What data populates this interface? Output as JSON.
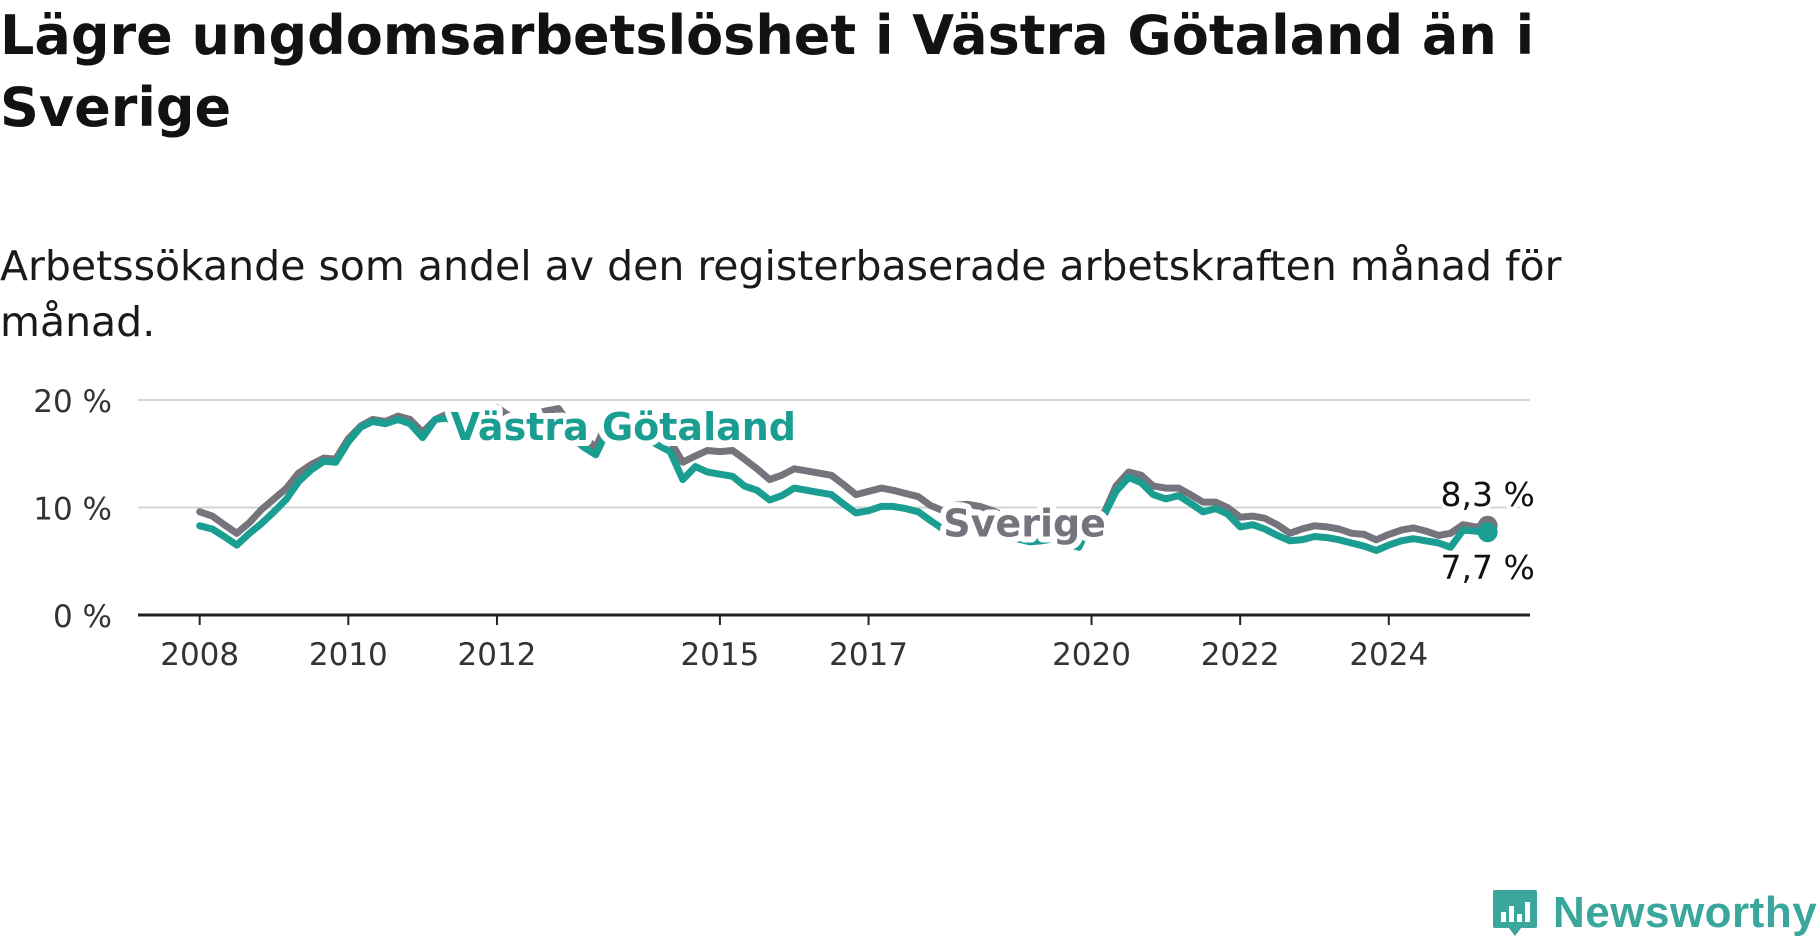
{
  "title": "Lägre ungdomsarbetslöshet i Västra Götaland än i Sverige",
  "subtitle": "Arbetssökande som andel av den registerbaserade arbetskraften månad för månad.",
  "brand": {
    "name": "Newsworthy",
    "color": "#3aa69c"
  },
  "chart_data": {
    "type": "line",
    "title": "Lägre ungdomsarbetslöshet i Västra Götaland än i Sverige",
    "subtitle": "Arbetssökande som andel av den registerbaserade arbetskraften månad för månad.",
    "xlabel": "",
    "ylabel": "",
    "ylim": [
      0,
      20
    ],
    "grid": true,
    "y_ticks": [
      "0 %",
      "10 %",
      "20 %"
    ],
    "y_tick_values": [
      0,
      10,
      20
    ],
    "x_ticks": [
      "2008",
      "2010",
      "2012",
      "2015",
      "2017",
      "2020",
      "2022",
      "2024"
    ],
    "x_tick_values": [
      2008,
      2010,
      2012,
      2015,
      2017,
      2020,
      2022,
      2024
    ],
    "series": [
      {
        "name": "Sverige",
        "color": "#75737b",
        "end_label": "8,3 %",
        "points": [
          [
            2008.0,
            9.6
          ],
          [
            2008.17,
            9.2
          ],
          [
            2008.33,
            8.4
          ],
          [
            2008.5,
            7.6
          ],
          [
            2008.67,
            8.6
          ],
          [
            2008.83,
            9.8
          ],
          [
            2009.0,
            10.8
          ],
          [
            2009.17,
            11.8
          ],
          [
            2009.33,
            13.2
          ],
          [
            2009.5,
            14.0
          ],
          [
            2009.67,
            14.6
          ],
          [
            2009.83,
            14.5
          ],
          [
            2010.0,
            16.4
          ],
          [
            2010.17,
            17.6
          ],
          [
            2010.33,
            18.2
          ],
          [
            2010.5,
            18.0
          ],
          [
            2010.67,
            18.5
          ],
          [
            2010.83,
            18.2
          ],
          [
            2011.0,
            17.0
          ],
          [
            2011.17,
            18.2
          ],
          [
            2011.33,
            18.7
          ],
          [
            2011.5,
            18.4
          ],
          [
            2011.67,
            18.0
          ],
          [
            2011.83,
            17.8
          ],
          [
            2012.0,
            19.3
          ],
          [
            2012.17,
            18.5
          ],
          [
            2012.33,
            17.2
          ],
          [
            2012.5,
            18.7
          ],
          [
            2012.67,
            19.0
          ],
          [
            2012.83,
            19.2
          ],
          [
            2013.0,
            17.5
          ],
          [
            2013.17,
            16.5
          ],
          [
            2013.33,
            15.6
          ],
          [
            2013.5,
            18.2
          ],
          [
            2013.67,
            18.5
          ],
          [
            2013.83,
            18.3
          ],
          [
            2014.0,
            17.5
          ],
          [
            2014.17,
            17.0
          ],
          [
            2014.33,
            16.2
          ],
          [
            2014.5,
            14.2
          ],
          [
            2014.67,
            14.8
          ],
          [
            2014.83,
            15.3
          ],
          [
            2015.0,
            15.2
          ],
          [
            2015.17,
            15.3
          ],
          [
            2015.33,
            14.5
          ],
          [
            2015.5,
            13.6
          ],
          [
            2015.67,
            12.6
          ],
          [
            2015.83,
            13.0
          ],
          [
            2016.0,
            13.6
          ],
          [
            2016.17,
            13.4
          ],
          [
            2016.33,
            13.2
          ],
          [
            2016.5,
            13.0
          ],
          [
            2016.67,
            12.1
          ],
          [
            2016.83,
            11.2
          ],
          [
            2017.0,
            11.5
          ],
          [
            2017.17,
            11.8
          ],
          [
            2017.33,
            11.6
          ],
          [
            2017.5,
            11.3
          ],
          [
            2017.67,
            11.0
          ],
          [
            2017.83,
            10.2
          ],
          [
            2018.0,
            9.7
          ],
          [
            2018.17,
            10.2
          ],
          [
            2018.33,
            10.3
          ],
          [
            2018.5,
            10.1
          ],
          [
            2018.67,
            9.7
          ],
          [
            2018.83,
            9.2
          ],
          [
            2019.0,
            8.8
          ],
          [
            2019.17,
            8.3
          ],
          [
            2019.33,
            8.6
          ],
          [
            2019.5,
            8.8
          ],
          [
            2019.67,
            8.6
          ],
          [
            2019.83,
            8.5
          ],
          [
            2020.0,
            9.2
          ],
          [
            2020.17,
            9.5
          ],
          [
            2020.33,
            12.0
          ],
          [
            2020.5,
            13.3
          ],
          [
            2020.67,
            13.0
          ],
          [
            2020.83,
            12.0
          ],
          [
            2021.0,
            11.8
          ],
          [
            2021.17,
            11.8
          ],
          [
            2021.33,
            11.2
          ],
          [
            2021.5,
            10.5
          ],
          [
            2021.67,
            10.5
          ],
          [
            2021.83,
            10.0
          ],
          [
            2022.0,
            9.1
          ],
          [
            2022.17,
            9.2
          ],
          [
            2022.33,
            9.0
          ],
          [
            2022.5,
            8.4
          ],
          [
            2022.67,
            7.6
          ],
          [
            2022.83,
            8.0
          ],
          [
            2023.0,
            8.3
          ],
          [
            2023.17,
            8.2
          ],
          [
            2023.33,
            8.0
          ],
          [
            2023.5,
            7.6
          ],
          [
            2023.67,
            7.5
          ],
          [
            2023.83,
            7.0
          ],
          [
            2024.0,
            7.5
          ],
          [
            2024.17,
            7.9
          ],
          [
            2024.33,
            8.1
          ],
          [
            2024.5,
            7.8
          ],
          [
            2024.67,
            7.4
          ],
          [
            2024.83,
            7.6
          ],
          [
            2025.0,
            8.4
          ],
          [
            2025.17,
            8.2
          ],
          [
            2025.33,
            8.3
          ]
        ]
      },
      {
        "name": "Västra Götaland",
        "color": "#1a9e91",
        "end_label": "7,7 %",
        "points": [
          [
            2008.0,
            8.3
          ],
          [
            2008.17,
            8.0
          ],
          [
            2008.33,
            7.3
          ],
          [
            2008.5,
            6.5
          ],
          [
            2008.67,
            7.6
          ],
          [
            2008.83,
            8.5
          ],
          [
            2009.0,
            9.6
          ],
          [
            2009.17,
            10.8
          ],
          [
            2009.33,
            12.4
          ],
          [
            2009.5,
            13.5
          ],
          [
            2009.67,
            14.3
          ],
          [
            2009.83,
            14.2
          ],
          [
            2010.0,
            16.1
          ],
          [
            2010.17,
            17.5
          ],
          [
            2010.33,
            18.0
          ],
          [
            2010.5,
            17.8
          ],
          [
            2010.67,
            18.2
          ],
          [
            2010.83,
            17.8
          ],
          [
            2011.0,
            16.5
          ],
          [
            2011.17,
            18.2
          ],
          [
            2011.33,
            18.3
          ],
          [
            2011.5,
            17.6
          ],
          [
            2011.67,
            17.1
          ],
          [
            2011.83,
            16.9
          ],
          [
            2012.0,
            18.4
          ],
          [
            2012.17,
            17.7
          ],
          [
            2012.33,
            16.4
          ],
          [
            2012.5,
            17.8
          ],
          [
            2012.67,
            18.1
          ],
          [
            2012.83,
            18.2
          ],
          [
            2013.0,
            16.6
          ],
          [
            2013.17,
            15.6
          ],
          [
            2013.33,
            14.9
          ],
          [
            2013.5,
            17.4
          ],
          [
            2013.67,
            17.7
          ],
          [
            2013.83,
            17.3
          ],
          [
            2014.0,
            16.5
          ],
          [
            2014.17,
            15.8
          ],
          [
            2014.33,
            15.2
          ],
          [
            2014.5,
            12.6
          ],
          [
            2014.67,
            13.8
          ],
          [
            2014.83,
            13.3
          ],
          [
            2015.0,
            13.1
          ],
          [
            2015.17,
            12.9
          ],
          [
            2015.33,
            12.0
          ],
          [
            2015.5,
            11.6
          ],
          [
            2015.67,
            10.7
          ],
          [
            2015.83,
            11.1
          ],
          [
            2016.0,
            11.8
          ],
          [
            2016.17,
            11.6
          ],
          [
            2016.33,
            11.4
          ],
          [
            2016.5,
            11.2
          ],
          [
            2016.67,
            10.3
          ],
          [
            2016.83,
            9.5
          ],
          [
            2017.0,
            9.7
          ],
          [
            2017.17,
            10.1
          ],
          [
            2017.33,
            10.1
          ],
          [
            2017.5,
            9.9
          ],
          [
            2017.67,
            9.6
          ],
          [
            2017.83,
            8.8
          ],
          [
            2018.0,
            8.0
          ],
          [
            2018.17,
            8.3
          ],
          [
            2018.33,
            8.6
          ],
          [
            2018.5,
            8.4
          ],
          [
            2018.67,
            8.0
          ],
          [
            2018.83,
            7.6
          ],
          [
            2019.0,
            7.1
          ],
          [
            2019.17,
            6.8
          ],
          [
            2019.33,
            6.9
          ],
          [
            2019.5,
            7.1
          ],
          [
            2019.67,
            6.6
          ],
          [
            2019.83,
            6.3
          ],
          [
            2020.0,
            8.8
          ],
          [
            2020.17,
            9.3
          ],
          [
            2020.33,
            11.5
          ],
          [
            2020.5,
            12.8
          ],
          [
            2020.67,
            12.3
          ],
          [
            2020.83,
            11.2
          ],
          [
            2021.0,
            10.8
          ],
          [
            2021.17,
            11.1
          ],
          [
            2021.33,
            10.4
          ],
          [
            2021.5,
            9.6
          ],
          [
            2021.67,
            9.9
          ],
          [
            2021.83,
            9.4
          ],
          [
            2022.0,
            8.2
          ],
          [
            2022.17,
            8.4
          ],
          [
            2022.33,
            8.0
          ],
          [
            2022.5,
            7.4
          ],
          [
            2022.67,
            6.9
          ],
          [
            2022.83,
            7.0
          ],
          [
            2023.0,
            7.3
          ],
          [
            2023.17,
            7.2
          ],
          [
            2023.33,
            7.0
          ],
          [
            2023.5,
            6.7
          ],
          [
            2023.67,
            6.4
          ],
          [
            2023.83,
            6.0
          ],
          [
            2024.0,
            6.5
          ],
          [
            2024.17,
            6.9
          ],
          [
            2024.33,
            7.1
          ],
          [
            2024.5,
            6.9
          ],
          [
            2024.67,
            6.7
          ],
          [
            2024.83,
            6.3
          ],
          [
            2025.0,
            7.9
          ],
          [
            2025.17,
            7.8
          ],
          [
            2025.33,
            7.7
          ]
        ]
      }
    ],
    "annotations": [
      {
        "text": "Västra Götaland",
        "series": "Västra Götaland",
        "color": "#1a9e91"
      },
      {
        "text": "Sverige",
        "series": "Sverige",
        "color": "#75737b"
      }
    ]
  }
}
